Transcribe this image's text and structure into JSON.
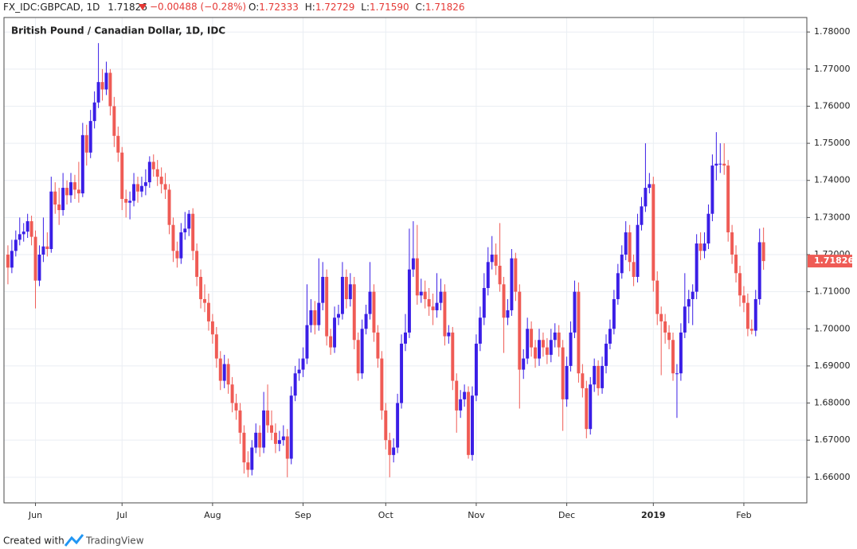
{
  "header": {
    "symbol": "FX_IDC:GBPCAD, 1D",
    "last": "1.71826",
    "change": "−0.00488 (−0.28%)",
    "o_label": "O:",
    "o": "1.72333",
    "h_label": "H:",
    "h": "1.72729",
    "l_label": "L:",
    "l": "1.71590",
    "c_label": "C:",
    "c": "1.71826"
  },
  "footer": {
    "text": "Created with",
    "brand": "TradingView"
  },
  "chart_data": {
    "type": "candlestick",
    "title": "British Pound / Canadian Dollar, 1D, IDC",
    "up_color": "#3a1ee6",
    "down_color": "#ef5b55",
    "grid": true,
    "xlim": [
      -1,
      203
    ],
    "xticks": [
      {
        "value": 7,
        "label": "Jun"
      },
      {
        "value": 29,
        "label": "Jul"
      },
      {
        "value": 52,
        "label": "Aug"
      },
      {
        "value": 75,
        "label": "Sep"
      },
      {
        "value": 96,
        "label": "Oct"
      },
      {
        "value": 119,
        "label": "Nov"
      },
      {
        "value": 142,
        "label": "Dec"
      },
      {
        "value": 164,
        "label": "2019"
      },
      {
        "value": 187,
        "label": "Feb"
      }
    ],
    "ylim": [
      1.6531,
      1.7839
    ],
    "yticks": [
      {
        "value": 1.66,
        "label": "1.66000"
      },
      {
        "value": 1.67,
        "label": "1.67000"
      },
      {
        "value": 1.68,
        "label": "1.68000"
      },
      {
        "value": 1.69,
        "label": "1.69000"
      },
      {
        "value": 1.7,
        "label": "1.70000"
      },
      {
        "value": 1.71,
        "label": "1.71000"
      },
      {
        "value": 1.72,
        "label": "1.72000"
      },
      {
        "value": 1.73,
        "label": "1.73000"
      },
      {
        "value": 1.74,
        "label": "1.74000"
      },
      {
        "value": 1.75,
        "label": "1.75000"
      },
      {
        "value": 1.76,
        "label": "1.76000"
      },
      {
        "value": 1.77,
        "label": "1.77000"
      },
      {
        "value": 1.78,
        "label": "1.78000"
      }
    ],
    "last_price": {
      "value": 1.71826,
      "label": "1.71826"
    },
    "candles": [
      [
        1.72,
        1.7225,
        1.712,
        1.7165
      ],
      [
        1.7165,
        1.724,
        1.715,
        1.721
      ],
      [
        1.721,
        1.7265,
        1.7195,
        1.724
      ],
      [
        1.724,
        1.73,
        1.7225,
        1.7255
      ],
      [
        1.7255,
        1.7285,
        1.7235,
        1.7262
      ],
      [
        1.7262,
        1.731,
        1.7245,
        1.729
      ],
      [
        1.729,
        1.7305,
        1.7225,
        1.7248
      ],
      [
        1.7248,
        1.7265,
        1.7055,
        1.713
      ],
      [
        1.713,
        1.7225,
        1.7115,
        1.72
      ],
      [
        1.72,
        1.73,
        1.718,
        1.7222
      ],
      [
        1.7222,
        1.726,
        1.7195,
        1.7215
      ],
      [
        1.7215,
        1.741,
        1.7205,
        1.737
      ],
      [
        1.737,
        1.7395,
        1.731,
        1.7335
      ],
      [
        1.7335,
        1.738,
        1.728,
        1.732
      ],
      [
        1.732,
        1.742,
        1.7305,
        1.738
      ],
      [
        1.738,
        1.74,
        1.7335,
        1.736
      ],
      [
        1.736,
        1.742,
        1.734,
        1.7395
      ],
      [
        1.7395,
        1.7415,
        1.735,
        1.7375
      ],
      [
        1.7375,
        1.745,
        1.734,
        1.7365
      ],
      [
        1.7365,
        1.7555,
        1.7355,
        1.7522
      ],
      [
        1.7522,
        1.755,
        1.744,
        1.7475
      ],
      [
        1.7475,
        1.759,
        1.746,
        1.756
      ],
      [
        1.756,
        1.764,
        1.754,
        1.761
      ],
      [
        1.761,
        1.777,
        1.7595,
        1.7665
      ],
      [
        1.7665,
        1.77,
        1.7615,
        1.7645
      ],
      [
        1.7645,
        1.772,
        1.763,
        1.769
      ],
      [
        1.769,
        1.77,
        1.7575,
        1.76
      ],
      [
        1.76,
        1.7625,
        1.749,
        1.752
      ],
      [
        1.752,
        1.7545,
        1.745,
        1.7475
      ],
      [
        1.7475,
        1.749,
        1.732,
        1.735
      ],
      [
        1.735,
        1.7375,
        1.73,
        1.734
      ],
      [
        1.734,
        1.737,
        1.7295,
        1.7345
      ],
      [
        1.7345,
        1.742,
        1.733,
        1.739
      ],
      [
        1.739,
        1.741,
        1.734,
        1.737
      ],
      [
        1.737,
        1.741,
        1.7355,
        1.7385
      ],
      [
        1.7385,
        1.743,
        1.736,
        1.7395
      ],
      [
        1.7395,
        1.7465,
        1.738,
        1.745
      ],
      [
        1.745,
        1.747,
        1.741,
        1.743
      ],
      [
        1.743,
        1.7455,
        1.7385,
        1.741
      ],
      [
        1.741,
        1.7435,
        1.7365,
        1.739
      ],
      [
        1.739,
        1.742,
        1.735,
        1.7375
      ],
      [
        1.7375,
        1.739,
        1.7255,
        1.728
      ],
      [
        1.728,
        1.73,
        1.718,
        1.721
      ],
      [
        1.721,
        1.7235,
        1.7165,
        1.719
      ],
      [
        1.719,
        1.7285,
        1.7175,
        1.726
      ],
      [
        1.726,
        1.7315,
        1.724,
        1.727
      ],
      [
        1.727,
        1.732,
        1.725,
        1.731
      ],
      [
        1.731,
        1.7325,
        1.7185,
        1.721
      ],
      [
        1.721,
        1.723,
        1.7115,
        1.714
      ],
      [
        1.714,
        1.716,
        1.7055,
        1.708
      ],
      [
        1.708,
        1.712,
        1.7045,
        1.707
      ],
      [
        1.707,
        1.7095,
        1.6995,
        1.702
      ],
      [
        1.702,
        1.704,
        1.696,
        1.6985
      ],
      [
        1.6985,
        1.7005,
        1.6895,
        1.692
      ],
      [
        1.692,
        1.694,
        1.6835,
        1.686
      ],
      [
        1.686,
        1.693,
        1.684,
        1.6905
      ],
      [
        1.6905,
        1.692,
        1.6825,
        1.685
      ],
      [
        1.685,
        1.687,
        1.6775,
        1.68
      ],
      [
        1.68,
        1.6825,
        1.6755,
        1.678
      ],
      [
        1.678,
        1.68,
        1.669,
        1.672
      ],
      [
        1.672,
        1.674,
        1.661,
        1.664
      ],
      [
        1.664,
        1.667,
        1.66,
        1.662
      ],
      [
        1.662,
        1.67,
        1.6605,
        1.668
      ],
      [
        1.668,
        1.6745,
        1.6665,
        1.672
      ],
      [
        1.672,
        1.674,
        1.6655,
        1.668
      ],
      [
        1.668,
        1.683,
        1.6665,
        1.678
      ],
      [
        1.678,
        1.685,
        1.672,
        1.674
      ],
      [
        1.674,
        1.678,
        1.67,
        1.672
      ],
      [
        1.672,
        1.6745,
        1.6665,
        1.669
      ],
      [
        1.669,
        1.6725,
        1.667,
        1.67
      ],
      [
        1.67,
        1.674,
        1.6685,
        1.671
      ],
      [
        1.671,
        1.673,
        1.66,
        1.665
      ],
      [
        1.665,
        1.6845,
        1.6635,
        1.682
      ],
      [
        1.682,
        1.69,
        1.6805,
        1.688
      ],
      [
        1.688,
        1.692,
        1.686,
        1.689
      ],
      [
        1.689,
        1.695,
        1.687,
        1.692
      ],
      [
        1.692,
        1.712,
        1.6905,
        1.701
      ],
      [
        1.701,
        1.708,
        1.699,
        1.705
      ],
      [
        1.705,
        1.7075,
        1.6985,
        1.701
      ],
      [
        1.701,
        1.719,
        1.6995,
        1.707
      ],
      [
        1.707,
        1.718,
        1.705,
        1.714
      ],
      [
        1.714,
        1.716,
        1.6955,
        1.698
      ],
      [
        1.698,
        1.7,
        1.693,
        1.695
      ],
      [
        1.695,
        1.706,
        1.6935,
        1.703
      ],
      [
        1.703,
        1.7065,
        1.701,
        1.704
      ],
      [
        1.704,
        1.718,
        1.7025,
        1.714
      ],
      [
        1.714,
        1.716,
        1.7055,
        1.708
      ],
      [
        1.708,
        1.715,
        1.706,
        1.712
      ],
      [
        1.712,
        1.714,
        1.6945,
        1.697
      ],
      [
        1.697,
        1.699,
        1.686,
        1.688
      ],
      [
        1.688,
        1.7025,
        1.6865,
        1.7
      ],
      [
        1.7,
        1.7065,
        1.6985,
        1.704
      ],
      [
        1.704,
        1.718,
        1.7025,
        1.71
      ],
      [
        1.71,
        1.712,
        1.6965,
        1.699
      ],
      [
        1.699,
        1.701,
        1.6895,
        1.692
      ],
      [
        1.692,
        1.694,
        1.6755,
        1.678
      ],
      [
        1.678,
        1.68,
        1.6675,
        1.67
      ],
      [
        1.67,
        1.672,
        1.66,
        1.666
      ],
      [
        1.666,
        1.6705,
        1.664,
        1.668
      ],
      [
        1.668,
        1.6825,
        1.6665,
        1.68
      ],
      [
        1.68,
        1.6985,
        1.6785,
        1.696
      ],
      [
        1.696,
        1.704,
        1.694,
        1.699
      ],
      [
        1.699,
        1.727,
        1.6975,
        1.716
      ],
      [
        1.716,
        1.729,
        1.714,
        1.719
      ],
      [
        1.719,
        1.728,
        1.7065,
        1.709
      ],
      [
        1.709,
        1.7135,
        1.707,
        1.71
      ],
      [
        1.71,
        1.713,
        1.7055,
        1.708
      ],
      [
        1.708,
        1.711,
        1.7035,
        1.706
      ],
      [
        1.706,
        1.7095,
        1.701,
        1.705
      ],
      [
        1.705,
        1.715,
        1.703,
        1.707
      ],
      [
        1.707,
        1.7135,
        1.705,
        1.71
      ],
      [
        1.71,
        1.712,
        1.6955,
        1.698
      ],
      [
        1.698,
        1.701,
        1.696,
        1.699
      ],
      [
        1.699,
        1.7005,
        1.6835,
        1.686
      ],
      [
        1.686,
        1.688,
        1.672,
        1.678
      ],
      [
        1.678,
        1.6835,
        1.676,
        1.681
      ],
      [
        1.681,
        1.685,
        1.679,
        1.683
      ],
      [
        1.683,
        1.6845,
        1.665,
        1.666
      ],
      [
        1.666,
        1.6845,
        1.6645,
        1.682
      ],
      [
        1.682,
        1.6985,
        1.6805,
        1.696
      ],
      [
        1.696,
        1.706,
        1.694,
        1.703
      ],
      [
        1.703,
        1.715,
        1.701,
        1.711
      ],
      [
        1.711,
        1.722,
        1.709,
        1.718
      ],
      [
        1.718,
        1.725,
        1.716,
        1.72
      ],
      [
        1.72,
        1.723,
        1.7145,
        1.717
      ],
      [
        1.717,
        1.7285,
        1.71,
        1.712
      ],
      [
        1.712,
        1.714,
        1.6935,
        1.703
      ],
      [
        1.703,
        1.708,
        1.701,
        1.705
      ],
      [
        1.705,
        1.7215,
        1.7035,
        1.719
      ],
      [
        1.719,
        1.7205,
        1.7075,
        1.71
      ],
      [
        1.71,
        1.712,
        1.6785,
        1.689
      ],
      [
        1.689,
        1.6945,
        1.6865,
        1.692
      ],
      [
        1.692,
        1.703,
        1.6905,
        1.7
      ],
      [
        1.7,
        1.702,
        1.6925,
        1.695
      ],
      [
        1.695,
        1.697,
        1.6895,
        1.692
      ],
      [
        1.692,
        1.7,
        1.69,
        1.697
      ],
      [
        1.697,
        1.699,
        1.6925,
        1.695
      ],
      [
        1.695,
        1.6975,
        1.6905,
        1.693
      ],
      [
        1.693,
        1.7,
        1.691,
        1.697
      ],
      [
        1.697,
        1.7015,
        1.695,
        1.699
      ],
      [
        1.699,
        1.701,
        1.6925,
        1.695
      ],
      [
        1.695,
        1.697,
        1.6725,
        1.681
      ],
      [
        1.681,
        1.6925,
        1.679,
        1.69
      ],
      [
        1.69,
        1.702,
        1.6885,
        1.699
      ],
      [
        1.699,
        1.713,
        1.6975,
        1.71
      ],
      [
        1.71,
        1.7125,
        1.6855,
        1.688
      ],
      [
        1.688,
        1.6905,
        1.6815,
        1.684
      ],
      [
        1.684,
        1.686,
        1.6705,
        1.673
      ],
      [
        1.673,
        1.687,
        1.6715,
        1.685
      ],
      [
        1.685,
        1.692,
        1.683,
        1.69
      ],
      [
        1.69,
        1.6915,
        1.682,
        1.684
      ],
      [
        1.684,
        1.6925,
        1.6825,
        1.69
      ],
      [
        1.69,
        1.6985,
        1.688,
        1.696
      ],
      [
        1.696,
        1.7025,
        1.6945,
        1.7
      ],
      [
        1.7,
        1.7105,
        1.6985,
        1.708
      ],
      [
        1.708,
        1.7175,
        1.7065,
        1.715
      ],
      [
        1.715,
        1.7225,
        1.7135,
        1.72
      ],
      [
        1.72,
        1.729,
        1.7185,
        1.726
      ],
      [
        1.726,
        1.728,
        1.7155,
        1.718
      ],
      [
        1.718,
        1.72,
        1.7115,
        1.714
      ],
      [
        1.714,
        1.731,
        1.7125,
        1.728
      ],
      [
        1.728,
        1.7355,
        1.7265,
        1.733
      ],
      [
        1.733,
        1.75,
        1.7315,
        1.738
      ],
      [
        1.738,
        1.742,
        1.7365,
        1.739
      ],
      [
        1.739,
        1.741,
        1.71,
        1.713
      ],
      [
        1.713,
        1.7155,
        1.701,
        1.704
      ],
      [
        1.704,
        1.706,
        1.6875,
        1.702
      ],
      [
        1.702,
        1.704,
        1.696,
        1.699
      ],
      [
        1.699,
        1.701,
        1.6945,
        1.697
      ],
      [
        1.697,
        1.699,
        1.686,
        1.688
      ],
      [
        1.688,
        1.6905,
        1.676,
        1.688
      ],
      [
        1.688,
        1.7015,
        1.686,
        1.699
      ],
      [
        1.699,
        1.715,
        1.6975,
        1.706
      ],
      [
        1.706,
        1.7105,
        1.7015,
        1.708
      ],
      [
        1.708,
        1.712,
        1.701,
        1.71
      ],
      [
        1.71,
        1.7255,
        1.708,
        1.723
      ],
      [
        1.723,
        1.726,
        1.7185,
        1.721
      ],
      [
        1.721,
        1.726,
        1.719,
        1.723
      ],
      [
        1.723,
        1.7335,
        1.7215,
        1.731
      ],
      [
        1.731,
        1.747,
        1.729,
        1.744
      ],
      [
        1.744,
        1.753,
        1.74,
        1.7445
      ],
      [
        1.7445,
        1.75,
        1.742,
        1.7445
      ],
      [
        1.7445,
        1.75,
        1.7415,
        1.744
      ],
      [
        1.744,
        1.7455,
        1.7235,
        1.726
      ],
      [
        1.726,
        1.728,
        1.7175,
        1.72
      ],
      [
        1.72,
        1.7225,
        1.7125,
        1.715
      ],
      [
        1.715,
        1.717,
        1.706,
        1.709
      ],
      [
        1.709,
        1.7115,
        1.7045,
        1.707
      ],
      [
        1.707,
        1.7095,
        1.698,
        1.7
      ],
      [
        1.7,
        1.7025,
        1.6985,
        1.6995
      ],
      [
        1.6995,
        1.7105,
        1.698,
        1.708
      ],
      [
        1.708,
        1.727,
        1.7065,
        1.72333
      ],
      [
        1.72333,
        1.72729,
        1.7159,
        1.71826
      ]
    ]
  }
}
